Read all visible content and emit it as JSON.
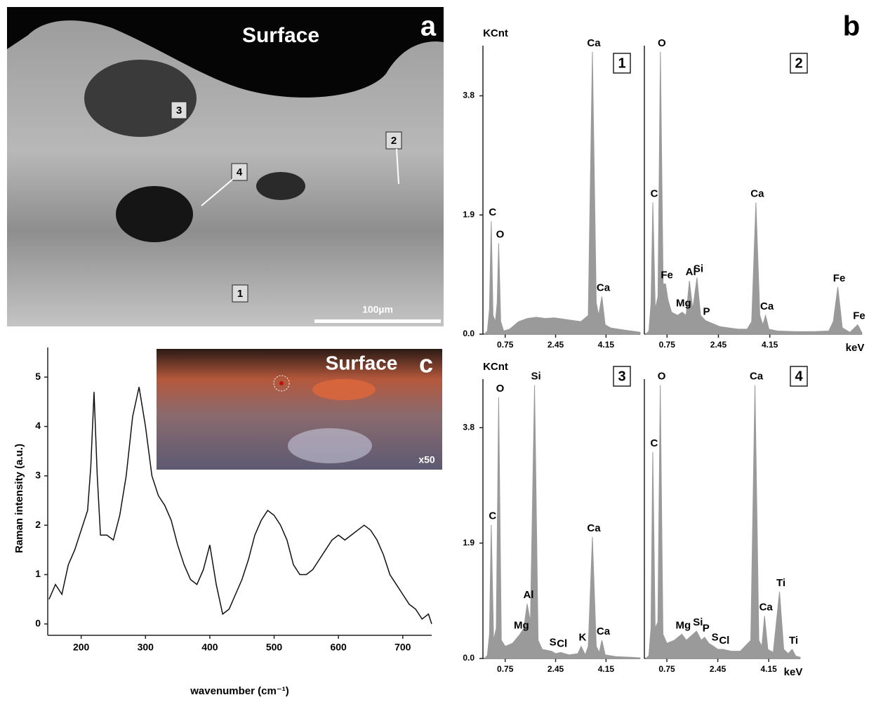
{
  "image_a": {
    "label": "a",
    "surface": "Surface",
    "markers": [
      "1",
      "2",
      "3",
      "4"
    ],
    "scale": "100µm"
  },
  "label_b": "b",
  "image_c": {
    "label": "c",
    "surface": "Surface",
    "magnification": "x50"
  },
  "chart_data": [
    {
      "type": "area",
      "panel": "1",
      "y_label": "KCnt",
      "color": "#9a9a9a",
      "xlim": [
        0,
        5.3
      ],
      "ylim": [
        0,
        4.6
      ],
      "xticks": [
        0.75,
        2.45,
        4.15
      ],
      "yticks": [
        {
          "value": 0,
          "label": "0.0"
        },
        1.9,
        3.8
      ],
      "x": [
        0.05,
        0.15,
        0.22,
        0.28,
        0.34,
        0.42,
        0.48,
        0.53,
        0.6,
        0.7,
        0.9,
        1.2,
        1.5,
        1.8,
        2.1,
        2.4,
        2.7,
        3.0,
        3.3,
        3.55,
        3.69,
        3.82,
        3.9,
        4.01,
        4.12,
        4.3,
        4.7,
        5.0,
        5.3
      ],
      "values": [
        0,
        0.05,
        0.4,
        1.8,
        0.3,
        0.2,
        0.5,
        1.45,
        0.2,
        0.05,
        0.08,
        0.2,
        0.25,
        0.27,
        0.25,
        0.26,
        0.24,
        0.22,
        0.2,
        0.3,
        4.5,
        0.5,
        0.3,
        0.6,
        0.15,
        0.1,
        0.07,
        0.05,
        0.03
      ],
      "peaks": [
        {
          "label": "C",
          "x": 0.28
        },
        {
          "label": "O",
          "x": 0.53
        },
        {
          "label": "Ca",
          "x": 3.69
        },
        {
          "label": "Ca",
          "x": 4.01
        }
      ]
    },
    {
      "type": "area",
      "panel": "2",
      "x_label": "keV",
      "color": "#9a9a9a",
      "xlim": [
        0,
        7.2
      ],
      "ylim": [
        0,
        4.6
      ],
      "xticks": [
        0.75,
        2.45,
        4.15
      ],
      "x": [
        0.05,
        0.15,
        0.22,
        0.28,
        0.36,
        0.45,
        0.53,
        0.62,
        0.7,
        0.78,
        0.9,
        1.1,
        1.25,
        1.38,
        1.49,
        1.6,
        1.74,
        1.86,
        2.01,
        2.2,
        2.5,
        2.8,
        3.1,
        3.4,
        3.55,
        3.69,
        3.82,
        3.92,
        4.01,
        4.12,
        4.4,
        5.0,
        5.6,
        6.1,
        6.25,
        6.4,
        6.55,
        6.8,
        7.06,
        7.2
      ],
      "values": [
        0,
        0.05,
        0.5,
        2.1,
        0.4,
        0.6,
        4.5,
        0.8,
        0.8,
        0.55,
        0.35,
        0.3,
        0.35,
        0.3,
        0.85,
        0.4,
        0.9,
        0.3,
        0.22,
        0.18,
        0.12,
        0.1,
        0.08,
        0.08,
        0.2,
        2.1,
        0.3,
        0.15,
        0.3,
        0.08,
        0.05,
        0.04,
        0.04,
        0.05,
        0.2,
        0.75,
        0.1,
        0.03,
        0.15,
        0.02
      ],
      "peaks": [
        {
          "label": "C",
          "x": 0.28
        },
        {
          "label": "O",
          "x": 0.53
        },
        {
          "label": "Fe",
          "x": 0.7
        },
        {
          "label": "Mg",
          "x": 1.25
        },
        {
          "label": "Al",
          "x": 1.49
        },
        {
          "label": "Si",
          "x": 1.74
        },
        {
          "label": "P",
          "x": 2.01
        },
        {
          "label": "Ca",
          "x": 3.69
        },
        {
          "label": "Ca",
          "x": 4.01
        },
        {
          "label": "Fe",
          "x": 6.4
        },
        {
          "label": "Fe",
          "x": 7.06
        }
      ]
    },
    {
      "type": "area",
      "panel": "3",
      "y_label": "KCnt",
      "color": "#9a9a9a",
      "xlim": [
        0,
        5.3
      ],
      "ylim": [
        0,
        4.6
      ],
      "xticks": [
        0.75,
        2.45,
        4.15
      ],
      "yticks": [
        {
          "value": 0,
          "label": "0.0"
        },
        1.9,
        3.8
      ],
      "x": [
        0.05,
        0.15,
        0.22,
        0.28,
        0.36,
        0.45,
        0.53,
        0.62,
        0.75,
        1.0,
        1.25,
        1.38,
        1.49,
        1.6,
        1.74,
        1.86,
        2.0,
        2.31,
        2.45,
        2.62,
        2.9,
        3.2,
        3.31,
        3.45,
        3.55,
        3.69,
        3.82,
        3.92,
        4.01,
        4.12,
        4.5,
        5.0,
        5.3
      ],
      "values": [
        0,
        0.05,
        0.4,
        2.2,
        0.3,
        0.5,
        4.3,
        0.3,
        0.2,
        0.25,
        0.4,
        0.5,
        0.9,
        0.6,
        4.5,
        0.3,
        0.15,
        0.12,
        0.08,
        0.1,
        0.06,
        0.08,
        0.2,
        0.06,
        0.2,
        2.0,
        0.2,
        0.1,
        0.3,
        0.06,
        0.03,
        0.02,
        0.01
      ],
      "peaks": [
        {
          "label": "C",
          "x": 0.28
        },
        {
          "label": "O",
          "x": 0.53
        },
        {
          "label": "Mg",
          "x": 1.25
        },
        {
          "label": "Al",
          "x": 1.49
        },
        {
          "label": "Si",
          "x": 1.74
        },
        {
          "label": "S",
          "x": 2.31
        },
        {
          "label": "Cl",
          "x": 2.62
        },
        {
          "label": "K",
          "x": 3.31
        },
        {
          "label": "Ca",
          "x": 3.69
        },
        {
          "label": "Ca",
          "x": 4.01
        }
      ]
    },
    {
      "type": "area",
      "panel": "4",
      "x_label": "keV",
      "color": "#9a9a9a",
      "xlim": [
        0,
        5.2
      ],
      "ylim": [
        0,
        4.6
      ],
      "xticks": [
        0.75,
        2.45,
        4.15
      ],
      "x": [
        0.05,
        0.15,
        0.22,
        0.28,
        0.36,
        0.45,
        0.53,
        0.62,
        0.75,
        1.0,
        1.25,
        1.4,
        1.74,
        1.9,
        2.01,
        2.15,
        2.31,
        2.45,
        2.62,
        2.9,
        3.2,
        3.55,
        3.69,
        3.82,
        3.92,
        4.01,
        4.12,
        4.3,
        4.51,
        4.65,
        4.8,
        4.93,
        5.05,
        5.2
      ],
      "values": [
        0,
        0.05,
        0.5,
        3.4,
        0.5,
        0.6,
        4.5,
        0.4,
        0.25,
        0.3,
        0.4,
        0.3,
        0.45,
        0.3,
        0.35,
        0.25,
        0.2,
        0.15,
        0.15,
        0.12,
        0.12,
        0.3,
        4.5,
        0.3,
        0.2,
        0.7,
        0.15,
        0.1,
        1.1,
        0.15,
        0.08,
        0.15,
        0.04,
        0.02
      ],
      "peaks": [
        {
          "label": "C",
          "x": 0.28
        },
        {
          "label": "O",
          "x": 0.53
        },
        {
          "label": "Mg",
          "x": 1.25
        },
        {
          "label": "Si",
          "x": 1.74
        },
        {
          "label": "P",
          "x": 2.01
        },
        {
          "label": "S",
          "x": 2.31
        },
        {
          "label": "Cl",
          "x": 2.62
        },
        {
          "label": "Ca",
          "x": 3.69
        },
        {
          "label": "Ca",
          "x": 4.01
        },
        {
          "label": "Ti",
          "x": 4.51
        },
        {
          "label": "Ti",
          "x": 4.93
        }
      ]
    },
    {
      "type": "line",
      "x_label": "wavenumber (cm⁻¹)",
      "y_label": "Raman intensity (a.u.)",
      "color": "#111111",
      "xlim": [
        148,
        745
      ],
      "ylim": [
        -0.23,
        5.6
      ],
      "xticks": [
        200,
        300,
        400,
        500,
        600,
        700
      ],
      "yticks": [
        0,
        1,
        2,
        3,
        4,
        5
      ],
      "x": [
        150,
        160,
        170,
        180,
        190,
        200,
        210,
        215,
        220,
        225,
        230,
        240,
        250,
        260,
        270,
        280,
        290,
        300,
        310,
        320,
        330,
        340,
        350,
        360,
        370,
        380,
        390,
        400,
        410,
        420,
        430,
        440,
        450,
        460,
        470,
        480,
        490,
        500,
        510,
        520,
        530,
        540,
        550,
        560,
        570,
        580,
        590,
        600,
        610,
        620,
        630,
        640,
        650,
        660,
        670,
        680,
        690,
        700,
        710,
        720,
        730,
        740,
        745
      ],
      "values": [
        0.5,
        0.8,
        0.6,
        1.2,
        1.5,
        1.9,
        2.3,
        3.2,
        4.7,
        3.0,
        1.8,
        1.8,
        1.7,
        2.2,
        3.0,
        4.2,
        4.8,
        4.0,
        3.0,
        2.6,
        2.4,
        2.1,
        1.6,
        1.2,
        0.9,
        0.8,
        1.1,
        1.6,
        0.8,
        0.2,
        0.3,
        0.6,
        0.9,
        1.3,
        1.8,
        2.1,
        2.3,
        2.2,
        2.0,
        1.7,
        1.2,
        1.0,
        1.0,
        1.1,
        1.3,
        1.5,
        1.7,
        1.8,
        1.7,
        1.8,
        1.9,
        2.0,
        1.9,
        1.7,
        1.4,
        1.0,
        0.8,
        0.6,
        0.4,
        0.3,
        0.1,
        0.2,
        0.0
      ]
    }
  ]
}
